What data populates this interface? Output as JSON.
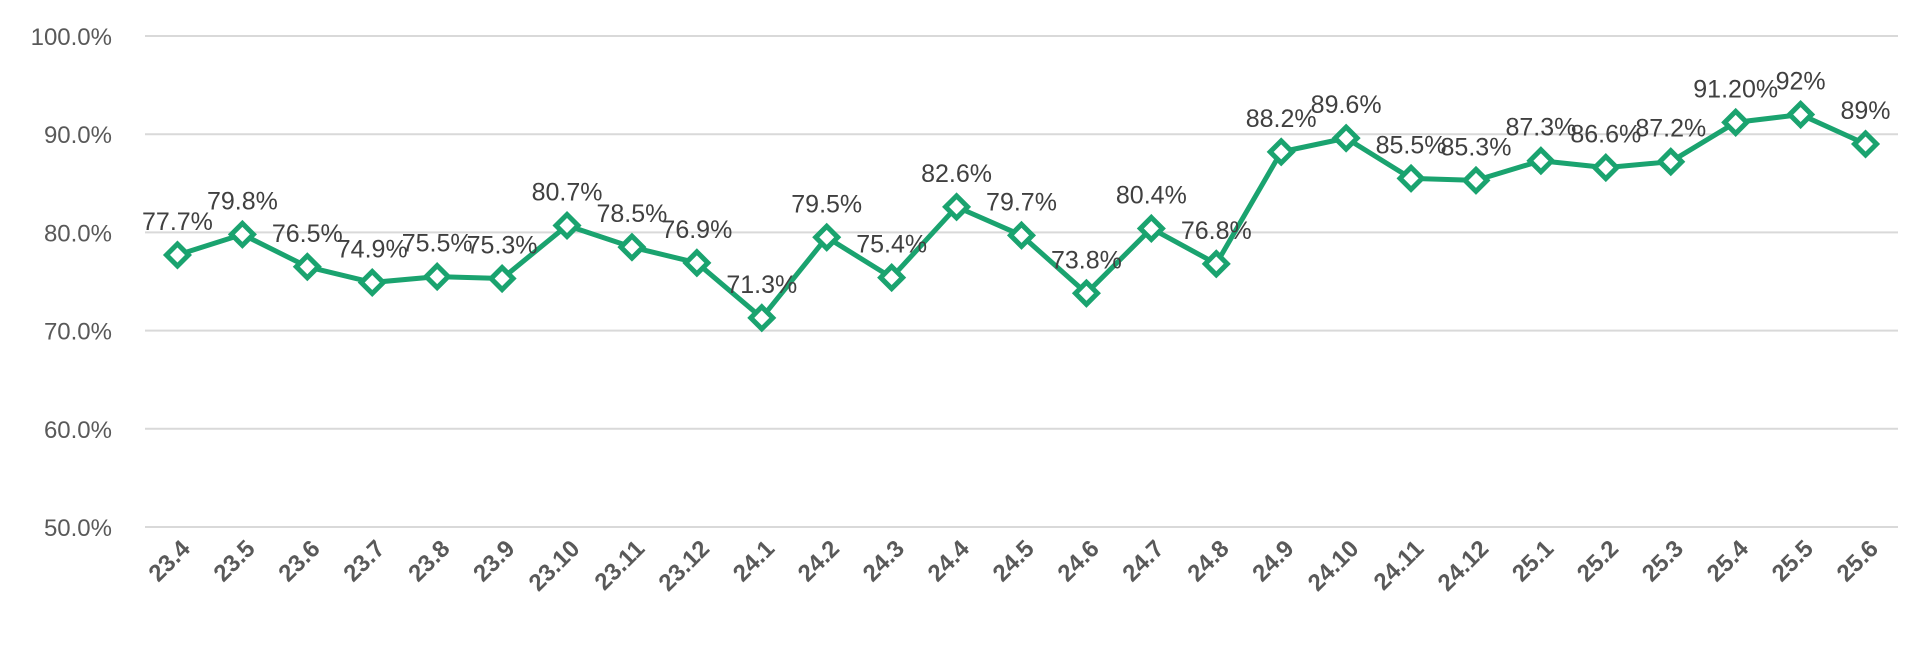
{
  "chart_data": {
    "type": "line",
    "title": "",
    "xlabel": "",
    "ylabel": "",
    "categories": [
      "23.4",
      "23.5",
      "23.6",
      "23.7",
      "23.8",
      "23.9",
      "23.10",
      "23.11",
      "23.12",
      "24.1",
      "24.2",
      "24.3",
      "24.4",
      "24.5",
      "24.6",
      "24.7",
      "24.8",
      "24.9",
      "24.10",
      "24.11",
      "24.12",
      "25.1",
      "25.2",
      "25.3",
      "25.4",
      "25.5",
      "25.6"
    ],
    "values": [
      77.7,
      79.8,
      76.5,
      74.9,
      75.5,
      75.3,
      80.7,
      78.5,
      76.9,
      71.3,
      79.5,
      75.4,
      82.6,
      79.7,
      73.8,
      80.4,
      76.8,
      88.2,
      89.6,
      85.5,
      85.3,
      87.3,
      86.6,
      87.2,
      91.2,
      92,
      89
    ],
    "data_labels": [
      "77.7%",
      "79.8%",
      "76.5%",
      "74.9%",
      "75.5%",
      "75.3%",
      "80.7%",
      "78.5%",
      "76.9%",
      "71.3%",
      "79.5%",
      "75.4%",
      "82.6%",
      "79.7%",
      "73.8%",
      "80.4%",
      "76.8%",
      "88.2%",
      "89.6%",
      "85.5%",
      "85.3%",
      "87.3%",
      "86.6%",
      "87.2%",
      "91.20%",
      "92%",
      "89%"
    ],
    "ylim": [
      50,
      100
    ],
    "yticks": [
      "50.0%",
      "60.0%",
      "70.0%",
      "80.0%",
      "90.0%",
      "100.0%"
    ],
    "grid": true,
    "legend": "none",
    "marker": "hollow-diamond",
    "colors": {
      "series": "#1aa36f",
      "grid": "#d9d9d9",
      "text": "#404040"
    }
  }
}
